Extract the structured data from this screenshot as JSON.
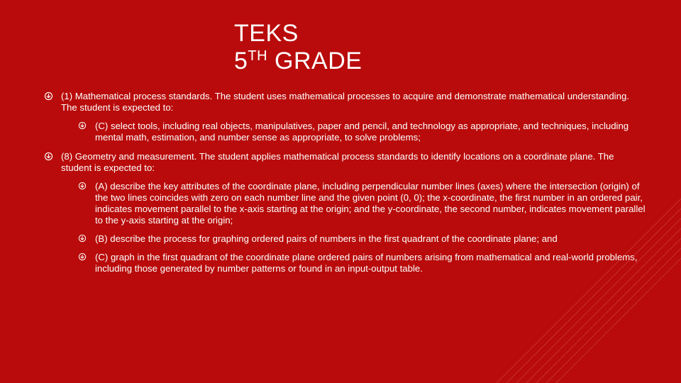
{
  "colors": {
    "background": "#b90b0b",
    "text": "#ffffff",
    "bullet_stroke": "#ffffff",
    "deco_line": "#d64a4a"
  },
  "title": {
    "line1": "TEKS",
    "line2_prefix": "5",
    "line2_sup": "TH",
    "line2_suffix": " GRADE",
    "fontsize": 34
  },
  "body_fontsize": 13.2,
  "items": [
    {
      "level": 1,
      "text": "(1)  Mathematical process standards. The student uses mathematical processes to acquire and demonstrate mathematical understanding. The student is expected to:"
    },
    {
      "level": 2,
      "text": "(C)  select tools, including real objects, manipulatives, paper and pencil, and technology as appropriate, and techniques, including mental math, estimation, and number sense as appropriate, to solve problems;"
    },
    {
      "level": 1,
      "text": "(8)  Geometry and measurement. The student applies mathematical process standards to identify locations on a coordinate plane. The student is expected to:"
    },
    {
      "level": 2,
      "text": "(A)  describe the key attributes of the coordinate plane, including perpendicular number lines (axes) where the intersection (origin) of the two lines coincides with zero on each number line and the given point (0, 0); the x-coordinate, the first number in an ordered pair, indicates movement parallel to the x-axis starting at the origin; and the y-coordinate, the second number, indicates movement parallel to the y-axis starting at the origin;"
    },
    {
      "level": 2,
      "text": "(B)  describe the process for graphing ordered pairs of numbers in the first quadrant of the coordinate plane; and"
    },
    {
      "level": 2,
      "text": "(C)  graph in the first quadrant of the coordinate plane ordered pairs of numbers arising from mathematical and real-world problems, including those generated by number patterns or found in an input-output table."
    }
  ],
  "deco": {
    "line_count": 7,
    "spacing": 14,
    "stroke_width": 1
  }
}
